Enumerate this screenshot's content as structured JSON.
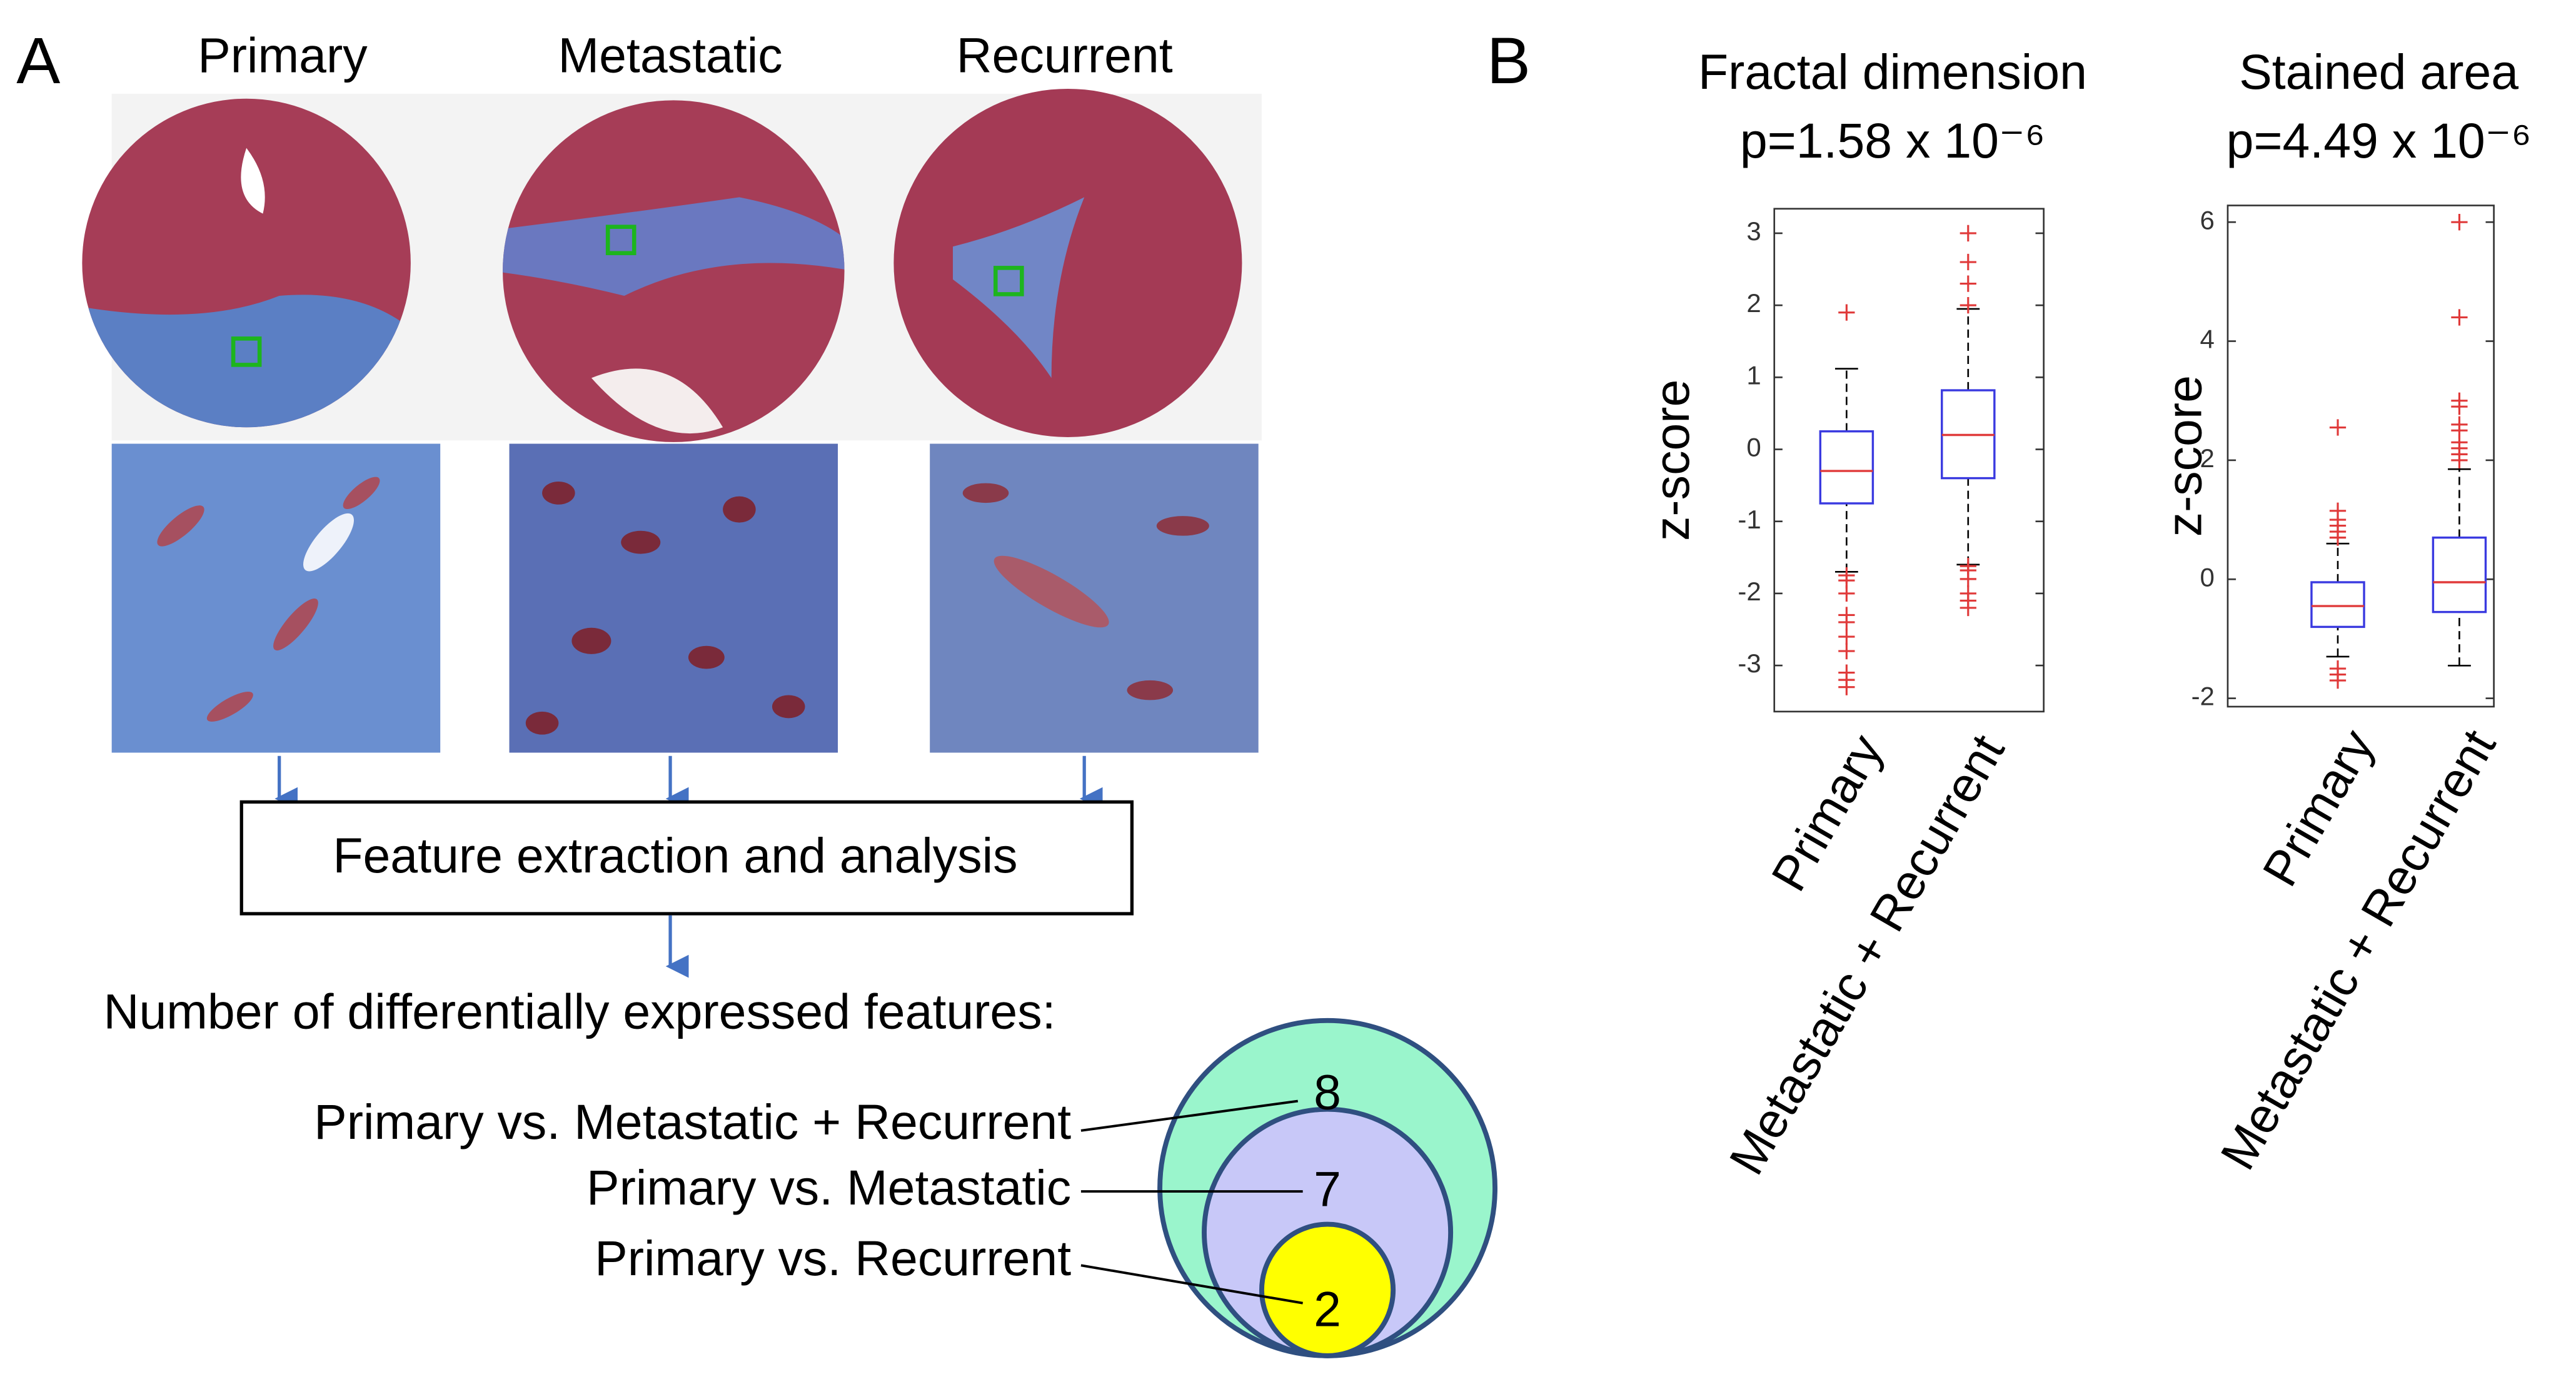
{
  "panel_labels": [
    "A",
    "B"
  ],
  "panel_a": {
    "columns": [
      "Primary",
      "Metastatic",
      "Recurrent"
    ],
    "process_box": "Feature extraction and analysis",
    "venn_title": "Number of differentially expressed features:",
    "venn": [
      {
        "label": "Primary vs. Metastatic + Recurrent",
        "count": "8"
      },
      {
        "label": "Primary vs. Metastatic",
        "count": "7"
      },
      {
        "label": "Primary vs. Recurrent",
        "count": "2"
      }
    ]
  },
  "chart_data": [
    {
      "type": "box",
      "title": "Fractal dimension",
      "subtitle": "p=1.58 x 10⁻⁶",
      "y_label": "z-score",
      "categories": [
        "Primary",
        "Metastatic + Recurrent"
      ],
      "ylim": [
        -3.64,
        3.34
      ],
      "yticks": [
        -3,
        -2,
        -1,
        0,
        1,
        2,
        3
      ],
      "box_color": "#3a3ae0",
      "median_color": "#e03a3a",
      "outlier_color": "#e03a3a",
      "boxes": [
        {
          "whisker_low": -1.7,
          "q1": -0.75,
          "median": -0.3,
          "q3": 0.25,
          "whisker_high": 1.12,
          "outliers": [
            1.9,
            -1.75,
            -1.82,
            -2.0,
            -2.3,
            -2.4,
            -2.6,
            -2.8,
            -3.1,
            -3.2,
            -3.3
          ]
        },
        {
          "whisker_low": -1.6,
          "q1": -0.4,
          "median": 0.2,
          "q3": 0.82,
          "whisker_high": 1.95,
          "outliers": [
            3.0,
            2.6,
            2.3,
            2.0,
            -1.62,
            -1.68,
            -1.8,
            -2.0,
            -2.1,
            -2.2
          ]
        }
      ]
    },
    {
      "type": "box",
      "title": "Stained area",
      "subtitle": "p=4.49 x 10⁻⁶",
      "y_label": "z-score",
      "categories": [
        "Primary",
        "Metastatic + Recurrent"
      ],
      "ylim": [
        -2.14,
        6.28
      ],
      "yticks": [
        -2,
        0,
        2,
        4,
        6
      ],
      "box_color": "#3a3ae0",
      "median_color": "#e03a3a",
      "outlier_color": "#e03a3a",
      "boxes": [
        {
          "whisker_low": -1.3,
          "q1": -0.8,
          "median": -0.45,
          "q3": -0.05,
          "whisker_high": 0.6,
          "outliers": [
            2.55,
            1.15,
            1.0,
            0.9,
            0.8,
            0.7,
            -1.5,
            -1.6,
            -1.7
          ]
        },
        {
          "whisker_low": -1.45,
          "q1": -0.55,
          "median": -0.05,
          "q3": 0.7,
          "whisker_high": 1.85,
          "outliers": [
            6.0,
            4.4,
            3.0,
            2.9,
            2.6,
            2.5,
            2.3,
            2.2,
            2.1,
            2.0
          ]
        }
      ]
    }
  ]
}
